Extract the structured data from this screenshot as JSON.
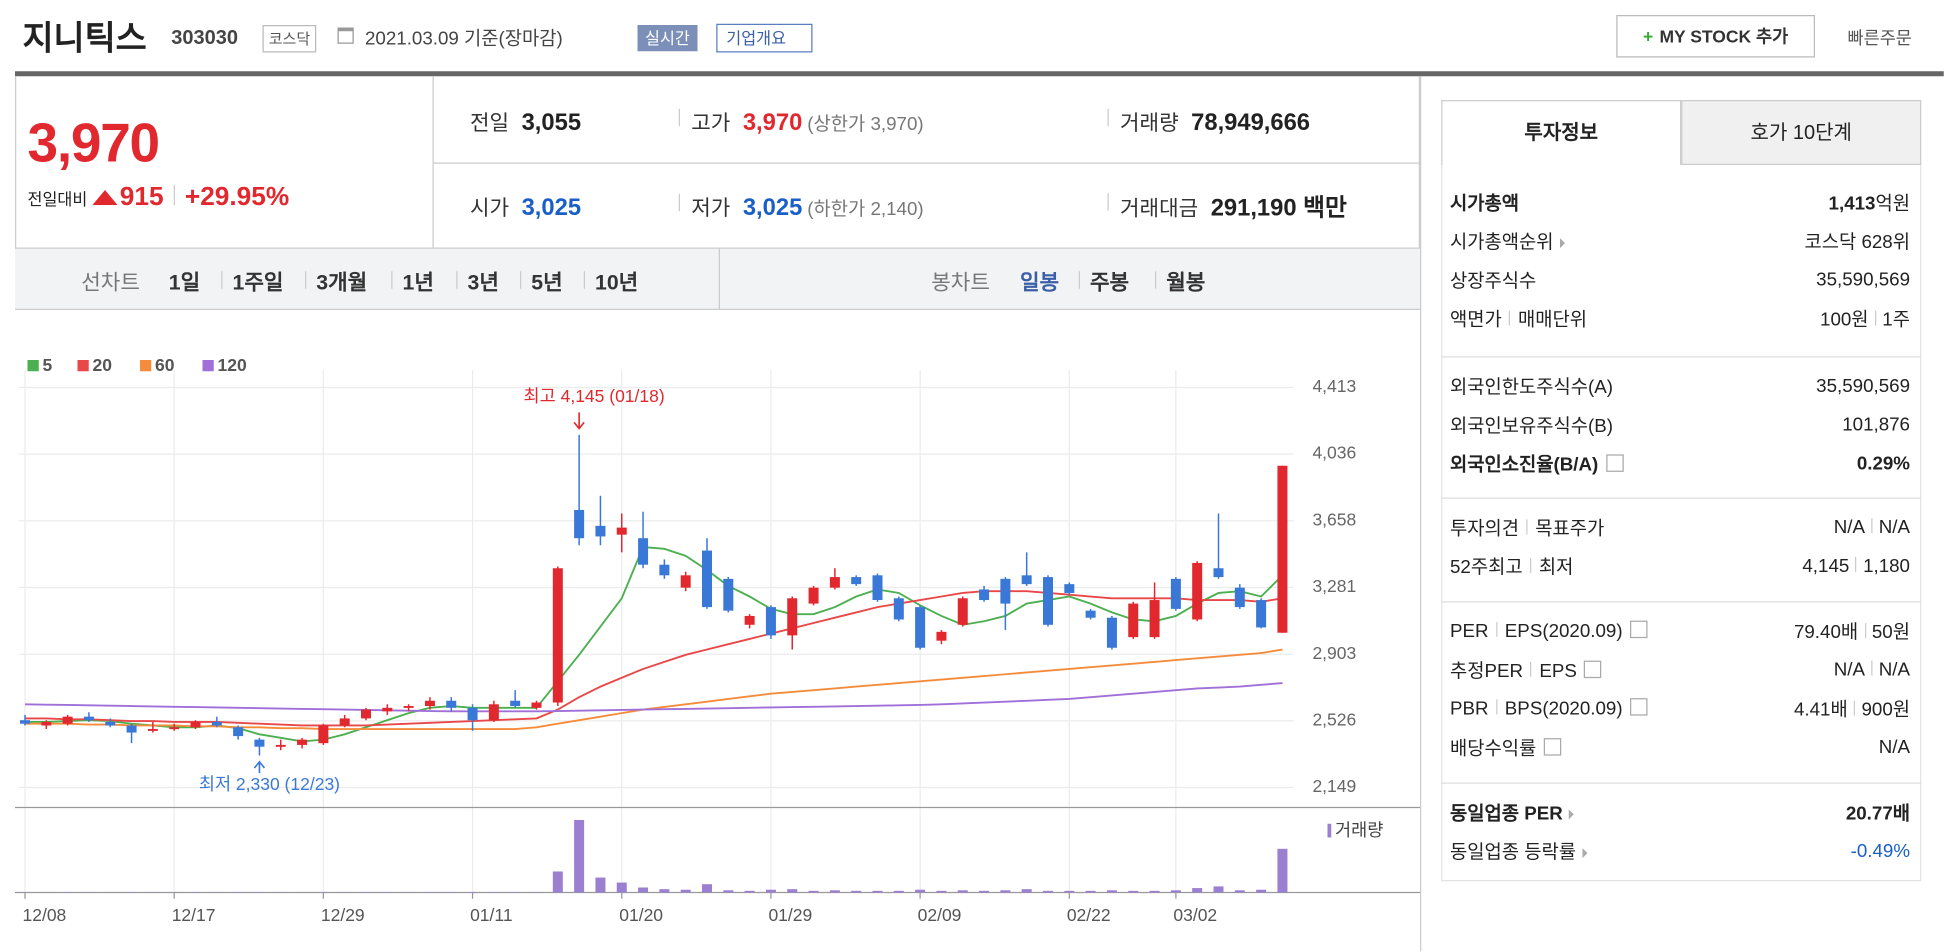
{
  "header": {
    "name": "지니틱스",
    "code": "303030",
    "market": "코스닥",
    "date": "2021.03.09 기준(장마감)",
    "realtime": "실시간",
    "overview": "기업개요",
    "mystock": "MY STOCK 추가",
    "quick": "빠른주문"
  },
  "price": {
    "current": "3,970",
    "change_label": "전일대비",
    "change": "915",
    "rate": "+29.95%"
  },
  "quotes": [
    [
      {
        "label": "전일",
        "value": "3,055"
      },
      {
        "label": "고가",
        "value": "3,970",
        "extra": "(상한가 3,970)",
        "color": "#e2282f"
      },
      {
        "label": "거래량",
        "value": "78,949,666"
      }
    ],
    [
      {
        "label": "시가",
        "value": "3,025",
        "color": "#1a5fc8"
      },
      {
        "label": "저가",
        "value": "3,025",
        "extra": "(하한가 2,140)",
        "color": "#1a5fc8"
      },
      {
        "label": "거래대금",
        "value": "291,190 백만"
      }
    ]
  ],
  "line_tabs": {
    "label": "선차트",
    "items": [
      "1일",
      "1주일",
      "3개월",
      "1년",
      "3년",
      "5년",
      "10년"
    ]
  },
  "candle_tabs": {
    "label": "봉차트",
    "items": [
      "일봉",
      "주봉",
      "월봉"
    ],
    "active": 0
  },
  "chart_data": {
    "type": "candlestick",
    "up_color": "#e2282f",
    "down_color": "#3a78d8",
    "categories": [
      "12/08",
      null,
      null,
      null,
      null,
      null,
      null,
      "12/17",
      null,
      null,
      null,
      null,
      null,
      null,
      "12/29",
      null,
      null,
      null,
      null,
      null,
      null,
      "01/11",
      null,
      null,
      null,
      null,
      null,
      null,
      "01/20",
      null,
      null,
      null,
      null,
      null,
      null,
      "01/29",
      null,
      null,
      null,
      null,
      null,
      null,
      "02/09",
      null,
      null,
      null,
      null,
      null,
      null,
      "02/22",
      null,
      null,
      null,
      null,
      "03/02",
      null,
      null,
      null,
      null,
      null
    ],
    "open": [
      2530,
      2500,
      2510,
      2550,
      2520,
      2500,
      2470,
      2480,
      2490,
      2520,
      2490,
      2420,
      2380,
      2390,
      2400,
      2500,
      2540,
      2580,
      2600,
      2610,
      2640,
      2600,
      2530,
      2640,
      2600,
      2630,
      3720,
      3630,
      3580,
      3560,
      3410,
      3280,
      3490,
      3330,
      3070,
      3170,
      3010,
      3190,
      3280,
      3340,
      3350,
      3220,
      3170,
      2980,
      3070,
      3270,
      3330,
      3350,
      3340,
      3300,
      3150,
      3110,
      3000,
      3000,
      3330,
      3100,
      3390,
      3280,
      3210,
      3025
    ],
    "high": [
      2560,
      2530,
      2560,
      2575,
      2540,
      2510,
      2520,
      2510,
      2530,
      2550,
      2500,
      2430,
      2420,
      2430,
      2510,
      2560,
      2600,
      2620,
      2620,
      2660,
      2660,
      2620,
      2640,
      2700,
      2640,
      3400,
      4145,
      3800,
      3700,
      3710,
      3440,
      3370,
      3560,
      3340,
      3130,
      3180,
      3230,
      3290,
      3390,
      3350,
      3360,
      3230,
      3180,
      3040,
      3230,
      3290,
      3340,
      3480,
      3350,
      3310,
      3160,
      3120,
      3200,
      3310,
      3340,
      3430,
      3700,
      3300,
      3220,
      3970
    ],
    "low": [
      2500,
      2480,
      2500,
      2520,
      2490,
      2400,
      2460,
      2470,
      2480,
      2490,
      2420,
      2330,
      2360,
      2370,
      2390,
      2490,
      2530,
      2560,
      2580,
      2590,
      2580,
      2470,
      2520,
      2600,
      2590,
      2610,
      3520,
      3520,
      3480,
      3390,
      3330,
      3260,
      3160,
      3140,
      3050,
      2990,
      2930,
      3180,
      3270,
      3290,
      3200,
      3090,
      2930,
      2960,
      3060,
      3200,
      3040,
      3290,
      3060,
      3240,
      3100,
      2930,
      2990,
      2990,
      3150,
      3090,
      3330,
      3160,
      3050,
      3025
    ],
    "close": [
      2510,
      2520,
      2550,
      2530,
      2500,
      2460,
      2480,
      2490,
      2520,
      2500,
      2440,
      2380,
      2390,
      2420,
      2500,
      2540,
      2590,
      2600,
      2610,
      2640,
      2600,
      2530,
      2620,
      2610,
      2630,
      3390,
      3560,
      3570,
      3620,
      3410,
      3350,
      3350,
      3170,
      3150,
      3120,
      3010,
      3220,
      3280,
      3340,
      3300,
      3210,
      3100,
      2940,
      3030,
      3220,
      3210,
      3190,
      3300,
      3070,
      3250,
      3110,
      2940,
      3190,
      3210,
      3160,
      3420,
      3340,
      3170,
      3055,
      3970
    ],
    "moving_averages": [
      {
        "name": "5",
        "color": "#4caf50",
        "values": [
          2520,
          2520,
          2525,
          2530,
          2525,
          2510,
          2500,
          2490,
          2490,
          2500,
          2485,
          2450,
          2430,
          2410,
          2420,
          2450,
          2490,
          2530,
          2570,
          2600,
          2610,
          2600,
          2600,
          2600,
          2600,
          2750,
          2900,
          3060,
          3220,
          3510,
          3500,
          3460,
          3380,
          3290,
          3230,
          3160,
          3130,
          3130,
          3170,
          3230,
          3270,
          3250,
          3180,
          3120,
          3070,
          3090,
          3120,
          3190,
          3210,
          3230,
          3190,
          3140,
          3100,
          3090,
          3120,
          3190,
          3250,
          3260,
          3230,
          3350
        ]
      },
      {
        "name": "20",
        "color": "#e84848",
        "values": [
          2540,
          2540,
          2535,
          2535,
          2530,
          2525,
          2525,
          2520,
          2520,
          2520,
          2515,
          2510,
          2505,
          2500,
          2500,
          2500,
          2500,
          2505,
          2510,
          2515,
          2520,
          2525,
          2530,
          2535,
          2540,
          2590,
          2660,
          2720,
          2770,
          2820,
          2860,
          2900,
          2930,
          2960,
          2990,
          3020,
          3050,
          3080,
          3110,
          3140,
          3170,
          3190,
          3210,
          3230,
          3250,
          3260,
          3260,
          3260,
          3250,
          3240,
          3230,
          3220,
          3220,
          3220,
          3220,
          3210,
          3210,
          3210,
          3200,
          3220
        ]
      },
      {
        "name": "60",
        "color": "#f58c3c",
        "values": [
          2510,
          2510,
          2510,
          2505,
          2505,
          2500,
          2500,
          2500,
          2495,
          2495,
          2490,
          2490,
          2485,
          2485,
          2480,
          2480,
          2480,
          2480,
          2480,
          2480,
          2480,
          2480,
          2480,
          2480,
          2490,
          2510,
          2530,
          2550,
          2570,
          2590,
          2605,
          2620,
          2635,
          2650,
          2665,
          2680,
          2690,
          2700,
          2710,
          2720,
          2730,
          2740,
          2750,
          2760,
          2770,
          2780,
          2790,
          2800,
          2810,
          2820,
          2830,
          2840,
          2850,
          2860,
          2870,
          2880,
          2890,
          2900,
          2910,
          2930
        ]
      },
      {
        "name": "120",
        "color": "#a070d8",
        "values": [
          2620,
          2618,
          2616,
          2614,
          2612,
          2610,
          2608,
          2606,
          2604,
          2602,
          2600,
          2598,
          2596,
          2594,
          2592,
          2590,
          2588,
          2586,
          2584,
          2582,
          2580,
          2580,
          2580,
          2580,
          2580,
          2582,
          2584,
          2586,
          2588,
          2590,
          2592,
          2594,
          2596,
          2598,
          2600,
          2602,
          2604,
          2606,
          2608,
          2610,
          2612,
          2614,
          2616,
          2620,
          2625,
          2630,
          2635,
          2640,
          2645,
          2650,
          2660,
          2670,
          2680,
          2690,
          2700,
          2710,
          2715,
          2720,
          2730,
          2740
        ]
      }
    ],
    "volume": {
      "name": "거래량",
      "color": "#9b7fd0",
      "values": [
        400000,
        300000,
        500000,
        400000,
        300000,
        600000,
        300000,
        300000,
        400000,
        300000,
        500000,
        800000,
        400000,
        300000,
        600000,
        500000,
        700000,
        600000,
        500000,
        600000,
        500000,
        900000,
        700000,
        800000,
        700000,
        38000000,
        131000000,
        27000000,
        18000000,
        9000000,
        6000000,
        5000000,
        15000000,
        4000000,
        3000000,
        5000000,
        6000000,
        3000000,
        4000000,
        3000000,
        3000000,
        3000000,
        5000000,
        3000000,
        4000000,
        3000000,
        4000000,
        6000000,
        3000000,
        3000000,
        3000000,
        4000000,
        3000000,
        3000000,
        4000000,
        8000000,
        11000000,
        4000000,
        5000000,
        78949666
      ]
    },
    "ylim": [
      2050,
      4512
    ],
    "yticks": [
      {
        "value": 4413,
        "label": "4,413"
      },
      {
        "value": 4036,
        "label": "4,036"
      },
      {
        "value": 3658,
        "label": "3,658"
      },
      {
        "value": 3281,
        "label": "3,281"
      },
      {
        "value": 2903,
        "label": "2,903"
      },
      {
        "value": 2526,
        "label": "2,526"
      },
      {
        "value": 2149,
        "label": "2,149"
      }
    ],
    "grid": true,
    "annotations": [
      {
        "text": "최고 4,145 (01/18)",
        "index": 26,
        "value": 4145,
        "color": "#e2282f"
      },
      {
        "text": "최저 2,330 (12/23)",
        "index": 11,
        "value": 2330,
        "color": "#3a78d8"
      }
    ]
  },
  "info": {
    "tabs": [
      "투자정보",
      "호가 10단계"
    ],
    "sections": [
      [
        {
          "label": [
            "시가총액"
          ],
          "value": [
            "1,413"
          ],
          "unit": "억원",
          "bold": true
        },
        {
          "label": [
            "시가총액순위"
          ],
          "arrow": true,
          "value": [
            "코스닥 628위"
          ]
        },
        {
          "label": [
            "상장주식수"
          ],
          "value": [
            "35,590,569"
          ]
        },
        {
          "label": [
            "액면가",
            "매매단위"
          ],
          "value": [
            "100원",
            "1주"
          ]
        }
      ],
      [
        {
          "label": [
            "외국인한도주식수(A)"
          ],
          "value": [
            "35,590,569"
          ]
        },
        {
          "label": [
            "외국인보유주식수(B)"
          ],
          "value": [
            "101,876"
          ]
        },
        {
          "label": [
            "외국인소진율(B/A)"
          ],
          "help": true,
          "value": [
            "0.29%"
          ],
          "bold": true
        }
      ],
      [
        {
          "label": [
            "투자의견",
            "목표주가"
          ],
          "value": [
            "N/A",
            "N/A"
          ]
        },
        {
          "label": [
            "52주최고",
            "최저"
          ],
          "value": [
            "4,145",
            "1,180"
          ]
        }
      ],
      [
        {
          "label": [
            "PER",
            "EPS(2020.09)"
          ],
          "help": true,
          "value": [
            "79.40배",
            "50원"
          ]
        },
        {
          "label": [
            "추정PER",
            "EPS"
          ],
          "help": true,
          "value": [
            "N/A",
            "N/A"
          ]
        },
        {
          "label": [
            "PBR",
            "BPS(2020.09)"
          ],
          "help": true,
          "value": [
            "4.41배",
            "900원"
          ]
        },
        {
          "label": [
            "배당수익률"
          ],
          "help": true,
          "value": [
            "N/A"
          ]
        }
      ],
      [
        {
          "label": [
            "동일업종 PER"
          ],
          "arrow": true,
          "value": [
            "20.77배"
          ],
          "bold": true
        },
        {
          "label": [
            "동일업종 등락률"
          ],
          "arrow": true,
          "value": [
            "-0.49%"
          ],
          "color": "#1a5fc8"
        }
      ]
    ]
  }
}
